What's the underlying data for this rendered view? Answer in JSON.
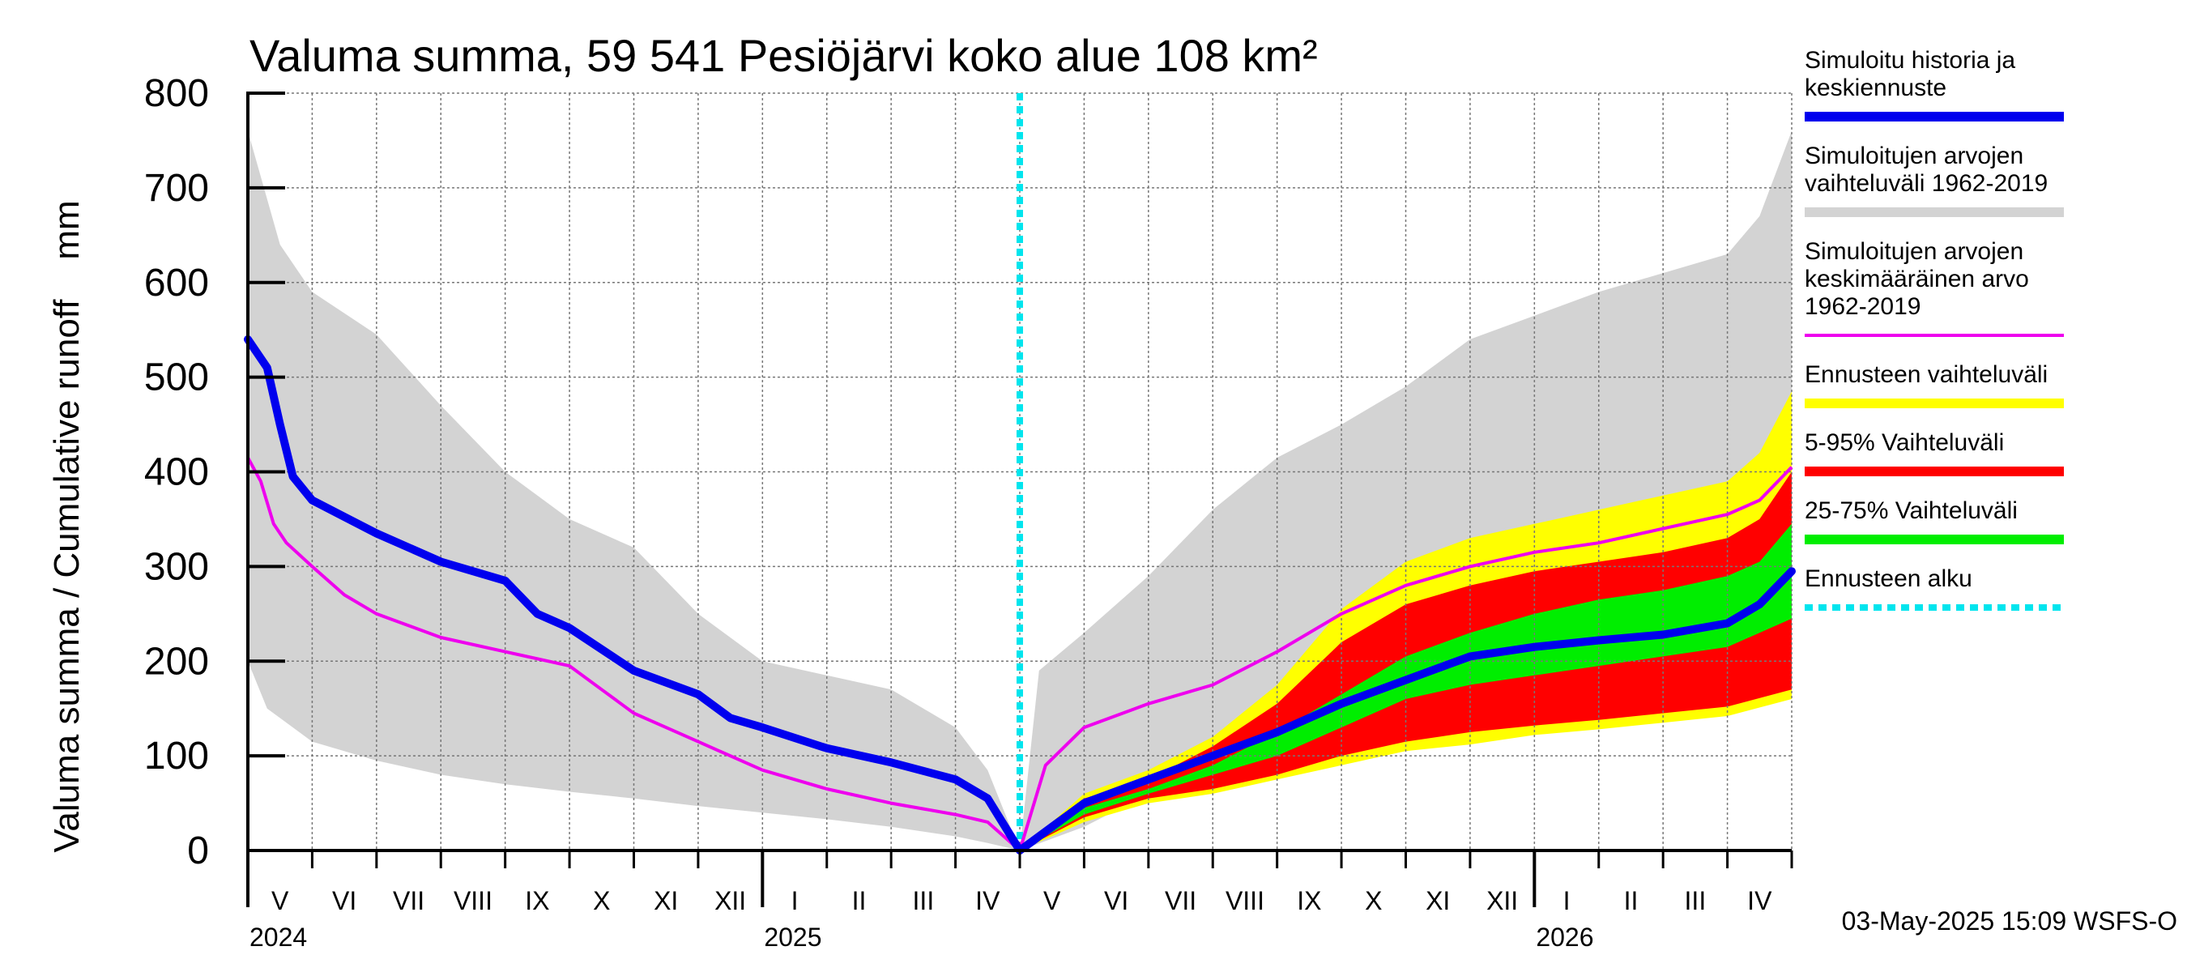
{
  "chart_data": {
    "type": "area",
    "title": "Valuma summa, 59 541 Pesiöjärvi koko alue 108 km²",
    "ylabel": "Valuma summa / Cumulative runoff    mm",
    "xlabel": "",
    "ylim": [
      0,
      800
    ],
    "yticks": [
      "0",
      "100",
      "200",
      "300",
      "400",
      "500",
      "600",
      "700",
      "800"
    ],
    "ytick_values": [
      0,
      100,
      200,
      300,
      400,
      500,
      600,
      700,
      800
    ],
    "months": [
      "V",
      "VI",
      "VII",
      "VIII",
      "IX",
      "X",
      "XI",
      "XII",
      "I",
      "II",
      "III",
      "IV",
      "V",
      "VI",
      "VII",
      "VIII",
      "IX",
      "X",
      "XI",
      "XII",
      "I",
      "II",
      "III",
      "IV"
    ],
    "years": [
      "2024",
      "2025",
      "2026"
    ],
    "year_start_month_index": [
      0,
      8,
      20
    ],
    "forecast_start_month": 12,
    "footer": "03-May-2025 15:09 WSFS-O",
    "legend": [
      {
        "label": "Simuloitu historia ja keskiennuste",
        "color": "#0000ee",
        "style": "thick"
      },
      {
        "label": "Simuloitujen arvojen vaihteluväli 1962-2019",
        "color": "#d3d3d3",
        "style": "thick"
      },
      {
        "label": "Simuloitujen arvojen keskimääräinen arvo 1962-2019",
        "color": "#ee00ee",
        "style": "thin"
      },
      {
        "label": "Ennusteen vaihteluväli",
        "color": "#ffff00",
        "style": "thick"
      },
      {
        "label": "5-95% Vaihteluväli",
        "color": "#ff0000",
        "style": "thick"
      },
      {
        "label": "25-75% Vaihteluväli",
        "color": "#00ee00",
        "style": "thick"
      },
      {
        "label": "Ennusteen alku",
        "color": "#00e5ee",
        "style": "dashed"
      }
    ],
    "series": [
      {
        "name": "Simuloitujen arvojen vaihteluväli 1962-2019 (upper)",
        "color": "#d3d3d3",
        "x": [
          0,
          0.5,
          1,
          2,
          3,
          4,
          5,
          6,
          7,
          8,
          9,
          10,
          11,
          11.5,
          12,
          12.3,
          13,
          14,
          15,
          16,
          17,
          18,
          19,
          20,
          21,
          22,
          23,
          23.5,
          24
        ],
        "y": [
          760,
          640,
          590,
          545,
          470,
          400,
          350,
          320,
          250,
          200,
          185,
          170,
          130,
          85,
          0,
          190,
          230,
          290,
          360,
          415,
          450,
          490,
          540,
          565,
          590,
          610,
          630,
          670,
          760
        ]
      },
      {
        "name": "Simuloitujen arvojen vaihteluväli 1962-2019 (lower)",
        "color": "#d3d3d3",
        "x": [
          0,
          0.3,
          1,
          2,
          3,
          4,
          5,
          6,
          7,
          8,
          9,
          10,
          11,
          11.5,
          12,
          13,
          14,
          15,
          16,
          17,
          18,
          19,
          20,
          21,
          22,
          23,
          24
        ],
        "y": [
          200,
          150,
          115,
          95,
          80,
          70,
          62,
          55,
          47,
          40,
          33,
          25,
          15,
          8,
          0,
          25,
          60,
          80,
          95,
          105,
          115,
          125,
          135,
          142,
          150,
          155,
          170
        ]
      },
      {
        "name": "Ennusteen vaihteluväli (upper)",
        "color": "#ffff00",
        "x": [
          12,
          13,
          14,
          15,
          16,
          17,
          18,
          19,
          20,
          21,
          22,
          23,
          23.5,
          24
        ],
        "y": [
          0,
          60,
          85,
          120,
          175,
          255,
          305,
          330,
          345,
          360,
          375,
          390,
          420,
          485
        ]
      },
      {
        "name": "Ennusteen vaihteluväli (lower)",
        "color": "#ffff00",
        "x": [
          12,
          13,
          14,
          15,
          16,
          17,
          18,
          19,
          20,
          21,
          22,
          23,
          24
        ],
        "y": [
          0,
          30,
          50,
          60,
          75,
          90,
          105,
          112,
          122,
          128,
          135,
          142,
          160
        ]
      },
      {
        "name": "5-95% Vaihteluväli (upper)",
        "color": "#ff0000",
        "x": [
          12,
          13,
          14,
          15,
          16,
          17,
          18,
          19,
          20,
          21,
          22,
          23,
          23.5,
          24
        ],
        "y": [
          0,
          55,
          75,
          110,
          155,
          220,
          260,
          280,
          295,
          305,
          315,
          330,
          350,
          400
        ]
      },
      {
        "name": "5-95% Vaihteluväli (lower)",
        "color": "#ff0000",
        "x": [
          12,
          13,
          14,
          15,
          16,
          17,
          18,
          19,
          20,
          21,
          22,
          23,
          24
        ],
        "y": [
          0,
          35,
          55,
          65,
          80,
          100,
          115,
          125,
          132,
          138,
          145,
          152,
          170
        ]
      },
      {
        "name": "25-75% Vaihteluväli (upper)",
        "color": "#00ee00",
        "x": [
          12,
          13,
          14,
          15,
          16,
          17,
          18,
          19,
          20,
          21,
          22,
          23,
          23.5,
          24
        ],
        "y": [
          0,
          45,
          65,
          90,
          125,
          165,
          205,
          230,
          250,
          265,
          275,
          290,
          305,
          345
        ]
      },
      {
        "name": "25-75% Vaihteluväli (lower)",
        "color": "#00ee00",
        "x": [
          12,
          13,
          14,
          15,
          16,
          17,
          18,
          19,
          20,
          21,
          22,
          23,
          24
        ],
        "y": [
          0,
          38,
          60,
          80,
          100,
          130,
          160,
          175,
          185,
          195,
          205,
          215,
          245
        ]
      },
      {
        "name": "Simuloitujen arvojen keskimääräinen arvo 1962-2019",
        "color": "#ee00ee",
        "x": [
          0,
          0.2,
          0.4,
          0.6,
          1,
          1.5,
          2,
          3,
          4,
          5,
          5.5,
          6,
          7,
          8,
          9,
          10,
          11,
          11.5,
          12,
          12.4,
          13,
          14,
          15,
          16,
          17,
          18,
          19,
          20,
          21,
          22,
          23,
          23.5,
          24
        ],
        "y": [
          415,
          390,
          345,
          325,
          300,
          270,
          250,
          225,
          210,
          195,
          170,
          145,
          115,
          85,
          65,
          50,
          38,
          30,
          0,
          90,
          130,
          155,
          175,
          210,
          250,
          280,
          300,
          315,
          325,
          340,
          355,
          370,
          405
        ]
      },
      {
        "name": "Simuloitu historia ja keskiennuste",
        "color": "#0000ee",
        "x": [
          0,
          0.3,
          0.5,
          0.7,
          1,
          2,
          3,
          4,
          4.5,
          5,
          6,
          7,
          7.5,
          8,
          9,
          10,
          11,
          11.5,
          12,
          13,
          14,
          15,
          16,
          17,
          18,
          19,
          20,
          21,
          22,
          23,
          23.5,
          24
        ],
        "y": [
          540,
          510,
          450,
          395,
          370,
          335,
          305,
          285,
          250,
          235,
          190,
          165,
          140,
          130,
          108,
          93,
          75,
          55,
          0,
          50,
          75,
          100,
          125,
          155,
          180,
          205,
          215,
          222,
          228,
          240,
          260,
          295
        ]
      }
    ]
  }
}
